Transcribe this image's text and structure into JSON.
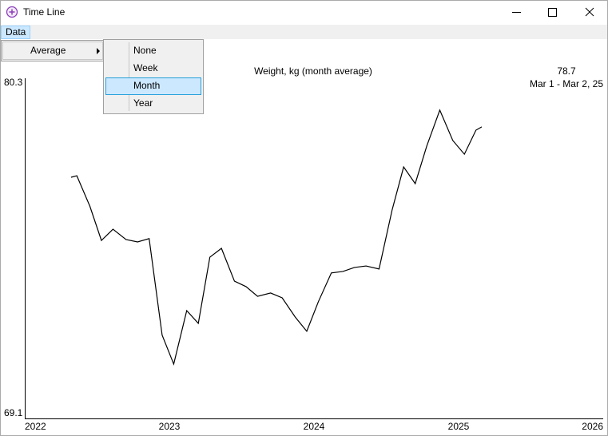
{
  "window": {
    "title": "Time Line"
  },
  "menu": {
    "bar": [
      "Data"
    ],
    "data_menu": [
      "Average"
    ],
    "average_menu": [
      "None",
      "Week",
      "Month",
      "Year"
    ]
  },
  "chart_data": {
    "type": "line",
    "title": "Weight, kg (month average)",
    "current_value": 78.7,
    "current_range": "Mar 1 - Mar 2, 25",
    "x": [
      2022.32,
      2022.36,
      2022.45,
      2022.53,
      2022.61,
      2022.7,
      2022.78,
      2022.86,
      2022.95,
      2023.03,
      2023.12,
      2023.2,
      2023.28,
      2023.36,
      2023.45,
      2023.53,
      2023.61,
      2023.7,
      2023.78,
      2023.87,
      2023.95,
      2024.03,
      2024.12,
      2024.2,
      2024.28,
      2024.36,
      2024.45,
      2024.54,
      2024.62,
      2024.7,
      2024.78,
      2024.87,
      2024.96,
      2025.04,
      2025.12,
      2025.16
    ],
    "values": [
      77.04,
      77.09,
      76.09,
      74.96,
      75.33,
      74.99,
      74.91,
      75.02,
      71.84,
      70.89,
      72.65,
      72.23,
      74.41,
      74.7,
      73.62,
      73.44,
      73.12,
      73.23,
      73.07,
      72.44,
      71.97,
      72.94,
      73.89,
      73.94,
      74.07,
      74.12,
      74.02,
      75.96,
      77.38,
      76.83,
      78.07,
      79.25,
      78.25,
      77.8,
      78.59,
      78.7
    ],
    "color": "#000000",
    "xlim": [
      2022,
      2026
    ],
    "xticks": [
      2022,
      2023,
      2024,
      2025,
      2026
    ],
    "ylim": [
      69.1,
      80.3
    ],
    "yticks": [
      69.1,
      80.3
    ]
  }
}
